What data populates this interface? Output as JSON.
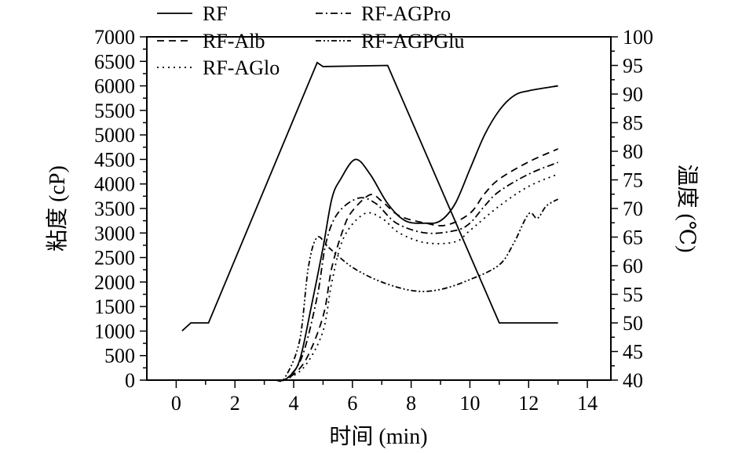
{
  "chart_data": {
    "type": "line",
    "title": "",
    "xlabel": "时间 (min)",
    "ylabel": "粘度 (cP)",
    "y2label": "温度 (℃)",
    "xlim": [
      -1,
      14.8
    ],
    "ylim": [
      0,
      7000
    ],
    "y2lim": [
      40,
      100
    ],
    "xticks": [
      0,
      2,
      4,
      6,
      8,
      10,
      12,
      14
    ],
    "yticks": [
      0,
      500,
      1000,
      1500,
      2000,
      2500,
      3000,
      3500,
      4000,
      4500,
      5000,
      5500,
      6000,
      6500,
      7000
    ],
    "y2ticks": [
      40,
      45,
      50,
      55,
      60,
      65,
      70,
      75,
      80,
      85,
      90,
      95,
      100
    ],
    "grid": false,
    "legend_position": "top",
    "series": [
      {
        "name": "RF",
        "style": "solid",
        "axis": "left",
        "x": [
          3.5,
          3.8,
          4.2,
          4.6,
          5.0,
          5.3,
          5.6,
          6.1,
          6.6,
          7.2,
          7.8,
          8.5,
          9.0,
          9.5,
          10.0,
          10.5,
          11.0,
          11.5,
          12.0,
          13.0
        ],
        "y": [
          0,
          50,
          400,
          1500,
          2700,
          3700,
          4100,
          4500,
          4200,
          3600,
          3250,
          3200,
          3250,
          3600,
          4300,
          5000,
          5500,
          5800,
          5900,
          6000
        ]
      },
      {
        "name": "RF-Alb",
        "style": "dashed",
        "axis": "left",
        "x": [
          3.5,
          3.8,
          4.4,
          5.0,
          5.3,
          5.7,
          6.0,
          6.6,
          7.0,
          7.6,
          8.5,
          9.2,
          10.0,
          10.5,
          11.0,
          12.0,
          13.0
        ],
        "y": [
          0,
          30,
          400,
          1300,
          2300,
          3100,
          3450,
          3780,
          3650,
          3350,
          3200,
          3160,
          3400,
          3800,
          4100,
          4450,
          4715
        ]
      },
      {
        "name": "RF-AGlo",
        "style": "dotted",
        "axis": "left",
        "x": [
          3.5,
          3.8,
          4.4,
          5.0,
          5.3,
          5.7,
          6.4,
          7.0,
          7.6,
          8.5,
          9.5,
          10.0,
          11.0,
          12.0,
          13.0
        ],
        "y": [
          0,
          30,
          300,
          1000,
          2000,
          2900,
          3390,
          3300,
          3000,
          2800,
          2820,
          3050,
          3550,
          3950,
          4200
        ]
      },
      {
        "name": "RF-AGPro",
        "style": "dash-dot",
        "axis": "left",
        "x": [
          3.5,
          3.8,
          4.3,
          4.8,
          5.1,
          5.5,
          6.2,
          6.8,
          7.5,
          8.5,
          9.5,
          10.0,
          10.5,
          11.0,
          12.0,
          13.0
        ],
        "y": [
          0,
          50,
          500,
          1700,
          2800,
          3400,
          3710,
          3600,
          3200,
          3000,
          3050,
          3200,
          3550,
          3850,
          4200,
          4440
        ]
      },
      {
        "name": "RF-AGPGlu",
        "style": "dash-dot-dot",
        "axis": "left",
        "x": [
          3.4,
          3.7,
          4.2,
          4.5,
          4.8,
          5.2,
          6.0,
          7.0,
          8.1,
          9.0,
          10.0,
          11.0,
          11.5,
          12.0,
          12.3,
          12.6,
          13.0
        ],
        "y": [
          0,
          50,
          800,
          2300,
          2910,
          2700,
          2300,
          2000,
          1820,
          1850,
          2050,
          2350,
          2800,
          3390,
          3300,
          3550,
          3690
        ]
      },
      {
        "name": "Temperature",
        "style": "solid",
        "axis": "right",
        "x": [
          0.2,
          0.5,
          1.1,
          4.8,
          5.0,
          7.2,
          11.0,
          13.0
        ],
        "y": [
          48.6,
          50,
          50,
          95.5,
          94.8,
          95,
          50,
          50
        ]
      }
    ]
  }
}
